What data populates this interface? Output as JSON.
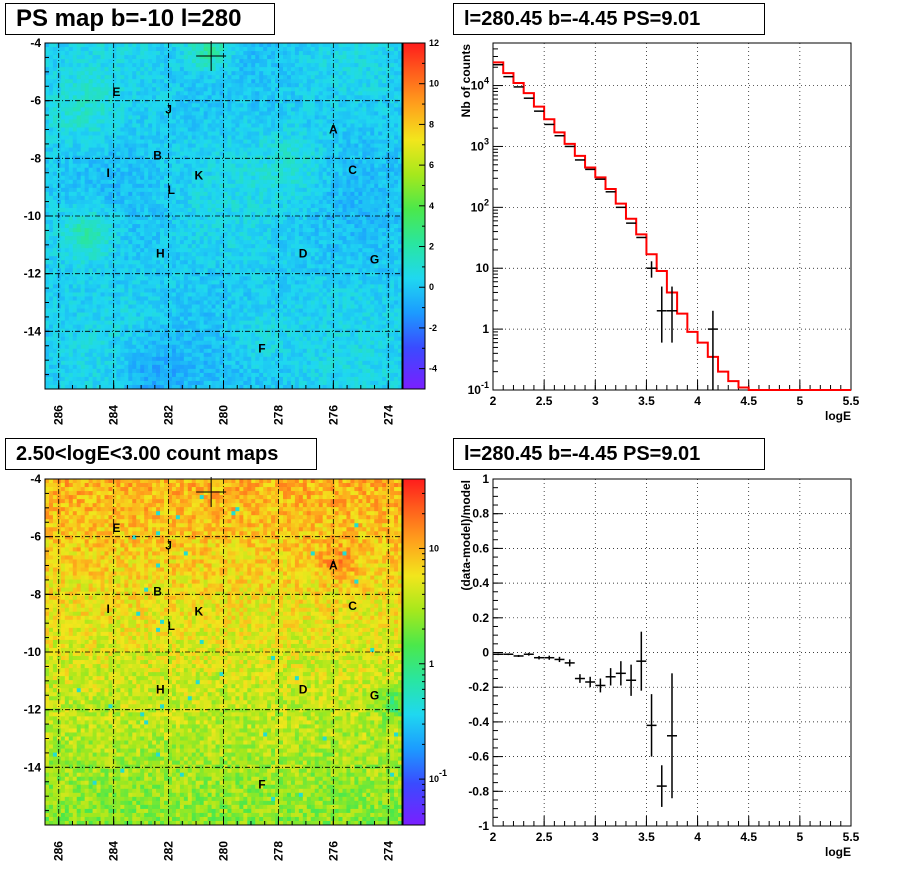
{
  "panels": {
    "tl": {
      "title": "PS map b=-10 l=280"
    },
    "tr": {
      "title": "l=280.45 b=-4.45 PS=9.01"
    },
    "bl": {
      "title": "2.50<logE<3.00 count maps"
    },
    "br": {
      "title": "l=280.45 b=-4.45 PS=9.01"
    }
  },
  "colors": {
    "data": "#000000",
    "model": "#ff0000"
  },
  "chart_data": [
    {
      "id": "ps-map",
      "type": "heatmap",
      "title": "PS map b=-10 l=280",
      "xlim": [
        286.5,
        273.5
      ],
      "ylim": [
        -16,
        -4
      ],
      "x_ticks": [
        "286",
        "284",
        "282",
        "280",
        "278",
        "276",
        "274"
      ],
      "y_ticks": [
        "-4",
        "-6",
        "-8",
        "-10",
        "-12",
        "-14"
      ],
      "colorbar": {
        "range": [
          -5,
          12
        ],
        "ticks": [
          "12",
          "10",
          "8",
          "6",
          "4",
          "2",
          "0",
          "-2",
          "-4"
        ]
      },
      "sources": [
        {
          "label": "E",
          "l": 283.9,
          "b": -5.7
        },
        {
          "label": "J",
          "l": 282.0,
          "b": -6.3
        },
        {
          "label": "A",
          "l": 276.0,
          "b": -7.0
        },
        {
          "label": "B",
          "l": 282.4,
          "b": -7.9
        },
        {
          "label": "I",
          "l": 284.2,
          "b": -8.5
        },
        {
          "label": "K",
          "l": 280.9,
          "b": -8.6
        },
        {
          "label": "C",
          "l": 275.3,
          "b": -8.4
        },
        {
          "label": "L",
          "l": 281.9,
          "b": -9.1
        },
        {
          "label": "H",
          "l": 282.3,
          "b": -11.3
        },
        {
          "label": "D",
          "l": 277.1,
          "b": -11.3
        },
        {
          "label": "G",
          "l": 274.5,
          "b": -11.5
        },
        {
          "label": "F",
          "l": 278.6,
          "b": -14.6
        }
      ],
      "marker": {
        "l": 280.45,
        "b": -4.45
      }
    },
    {
      "id": "spectrum",
      "type": "line",
      "title": "l=280.45 b=-4.45 PS=9.01",
      "xlabel": "logE",
      "ylabel": "Nb of counts",
      "xlim": [
        2,
        5.5
      ],
      "ylim": [
        0.1,
        50000
      ],
      "y_scale": "log",
      "x_ticks": [
        "2",
        "2.5",
        "3",
        "3.5",
        "4",
        "4.5",
        "5",
        "5.5"
      ],
      "y_ticks": [
        "10^-1",
        "1",
        "10",
        "10^2",
        "10^3",
        "10^4"
      ],
      "grid": true,
      "series": [
        {
          "kind": "data",
          "x": [
            2.05,
            2.15,
            2.25,
            2.35,
            2.45,
            2.55,
            2.65,
            2.75,
            2.85,
            2.95,
            3.05,
            3.15,
            3.25,
            3.35,
            3.45,
            3.55,
            3.65,
            3.75,
            4.15
          ],
          "y": [
            22000,
            14000,
            9500,
            6200,
            3800,
            2300,
            1500,
            1000,
            600,
            420,
            290,
            180,
            100,
            55,
            32,
            10,
            2,
            2,
            1
          ],
          "ylo": [
            null,
            null,
            null,
            null,
            null,
            null,
            null,
            null,
            null,
            null,
            null,
            null,
            null,
            null,
            null,
            7,
            0.6,
            0.6,
            0.1
          ],
          "yhi": [
            null,
            null,
            null,
            null,
            null,
            null,
            null,
            null,
            null,
            null,
            null,
            null,
            null,
            null,
            null,
            13,
            5,
            5,
            2
          ]
        },
        {
          "kind": "model",
          "edges": [
            2.0,
            2.1,
            2.2,
            2.3,
            2.4,
            2.5,
            2.6,
            2.7,
            2.8,
            2.9,
            3.0,
            3.1,
            3.2,
            3.3,
            3.4,
            3.5,
            3.6,
            3.7,
            3.8,
            3.9,
            4.0,
            4.1,
            4.2,
            4.3,
            4.4,
            4.5,
            5.5
          ],
          "values": [
            24000,
            16000,
            11000,
            7500,
            4500,
            2800,
            1700,
            1100,
            700,
            450,
            310,
            200,
            115,
            65,
            36,
            17,
            9,
            4,
            1.8,
            0.9,
            0.6,
            0.35,
            0.2,
            0.14,
            0.11,
            0.1
          ]
        }
      ]
    },
    {
      "id": "count-map",
      "type": "heatmap",
      "title": "2.50<logE<3.00 count maps",
      "xlim": [
        286.5,
        273.5
      ],
      "ylim": [
        -16,
        -4
      ],
      "x_ticks": [
        "286",
        "284",
        "282",
        "280",
        "278",
        "276",
        "274"
      ],
      "y_ticks": [
        "-4",
        "-6",
        "-8",
        "-10",
        "-12",
        "-14"
      ],
      "colorbar": {
        "scale": "log",
        "range": [
          0.04,
          40
        ],
        "ticks": [
          "10",
          "1",
          "10^-1"
        ]
      }
    },
    {
      "id": "residuals",
      "type": "scatter",
      "title": "l=280.45 b=-4.45 PS=9.01",
      "xlabel": "logE",
      "ylabel": "(data-model)/model",
      "xlim": [
        2,
        5.5
      ],
      "ylim": [
        -1,
        1
      ],
      "x_ticks": [
        "2",
        "2.5",
        "3",
        "3.5",
        "4",
        "4.5",
        "5",
        "5.5"
      ],
      "y_ticks": [
        "-1",
        "-0.8",
        "-0.6",
        "-0.4",
        "-0.2",
        "0",
        "0.2",
        "0.4",
        "0.6",
        "0.8",
        "1"
      ],
      "grid": true,
      "points": {
        "x": [
          2.05,
          2.15,
          2.25,
          2.35,
          2.45,
          2.55,
          2.65,
          2.75,
          2.85,
          2.95,
          3.05,
          3.15,
          3.25,
          3.35,
          3.45,
          3.55,
          3.65,
          3.75
        ],
        "y": [
          -0.01,
          -0.01,
          -0.02,
          -0.01,
          -0.03,
          -0.03,
          -0.04,
          -0.06,
          -0.15,
          -0.17,
          -0.19,
          -0.14,
          -0.12,
          -0.16,
          -0.05,
          -0.42,
          -0.77,
          -0.48
        ],
        "err": [
          0.005,
          0.005,
          0.006,
          0.008,
          0.01,
          0.012,
          0.015,
          0.02,
          0.025,
          0.03,
          0.04,
          0.05,
          0.07,
          0.09,
          0.17,
          0.18,
          0.12,
          0.36
        ]
      }
    }
  ]
}
